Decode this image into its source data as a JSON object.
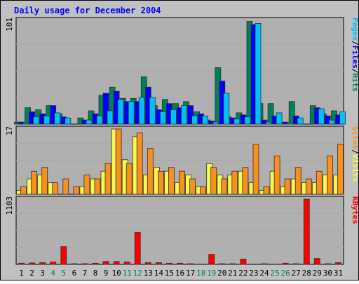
{
  "chart_data": {
    "type": "bar",
    "title": "Daily usage for December 2004",
    "categories": [
      "1",
      "2",
      "3",
      "4",
      "5",
      "6",
      "7",
      "8",
      "9",
      "10",
      "11",
      "12",
      "13",
      "14",
      "15",
      "16",
      "17",
      "18",
      "19",
      "20",
      "21",
      "22",
      "23",
      "24",
      "25",
      "26",
      "27",
      "28",
      "29",
      "30",
      "31"
    ],
    "weekend_days": [
      "4",
      "5",
      "11",
      "12",
      "18",
      "19",
      "25",
      "26"
    ],
    "panels": [
      {
        "id": "hits-files-pages",
        "ymax_label": "101",
        "ymax": 101,
        "legend": [
          "Pages",
          "/",
          "Files",
          "/",
          "Hits"
        ],
        "series": [
          {
            "name": "Hits",
            "color": "#00805c",
            "values": [
              2,
              16,
              14,
              18,
              10,
              0,
              6,
              13,
              28,
              36,
              25,
              25,
              46,
              18,
              24,
              20,
              22,
              12,
              4,
              55,
              7,
              11,
              100,
              20,
              20,
              2,
              22,
              0,
              18,
              10,
              13
            ]
          },
          {
            "name": "Files",
            "color": "#0000ff",
            "values": [
              2,
              12,
              10,
              18,
              7,
              0,
              4,
              10,
              30,
              32,
              22,
              22,
              36,
              14,
              20,
              16,
              18,
              10,
              3,
              42,
              6,
              9,
              97,
              4,
              8,
              2,
              8,
              0,
              16,
              8,
              9
            ]
          },
          {
            "name": "Pages",
            "color": "#00c0ff",
            "values": [
              1,
              7,
              8,
              11,
              6,
              0,
              4,
              8,
              13,
              24,
              22,
              26,
              26,
              12,
              14,
              18,
              8,
              8,
              2,
              30,
              5,
              7,
              98,
              2,
              11,
              1,
              6,
              0,
              15,
              4,
              12
            ]
          }
        ]
      },
      {
        "id": "visits-sites",
        "ymax_label": "17",
        "ymax": 17,
        "legend": [
          "Sites",
          "/",
          "Visits"
        ],
        "series": [
          {
            "name": "Visits",
            "color": "#f8f84c",
            "values": [
              1,
              4,
              5,
              3,
              0,
              0,
              2,
              4,
              6,
              17,
              9,
              15,
              5,
              7,
              6,
              3,
              5,
              2,
              8,
              5,
              5,
              6,
              3,
              1,
              6,
              2,
              4,
              3,
              3,
              5,
              5
            ]
          },
          {
            "name": "Sites",
            "color": "#f89020",
            "values": [
              2,
              6,
              7,
              3,
              4,
              2,
              5,
              4,
              8,
              17,
              8,
              16,
              12,
              6,
              7,
              6,
              4,
              2,
              7,
              4,
              6,
              7,
              13,
              2,
              10,
              4,
              7,
              4,
              6,
              10,
              13
            ]
          }
        ]
      },
      {
        "id": "kbytes",
        "ymax_label": "1103",
        "ymax": 1103,
        "legend": [
          "KBytes"
        ],
        "series": [
          {
            "name": "KBytes",
            "color": "#ff0000",
            "values": [
              20,
              25,
              30,
              40,
              300,
              10,
              10,
              20,
              50,
              50,
              40,
              540,
              30,
              30,
              20,
              20,
              10,
              0,
              170,
              10,
              10,
              90,
              0,
              10,
              0,
              20,
              10,
              1103,
              100,
              10,
              30
            ]
          }
        ]
      }
    ]
  },
  "colors": {
    "background": "#c0c0c0",
    "plot_area": "#b0b0b0",
    "title": "#0000ff",
    "weekday_label": "#000000",
    "weekend_label": "#00805c",
    "hits": "#00805c",
    "files": "#0000ff",
    "pages": "#00c0ff",
    "visits": "#f8f84c",
    "sites": "#f89020",
    "kbytes": "#ff0000"
  }
}
